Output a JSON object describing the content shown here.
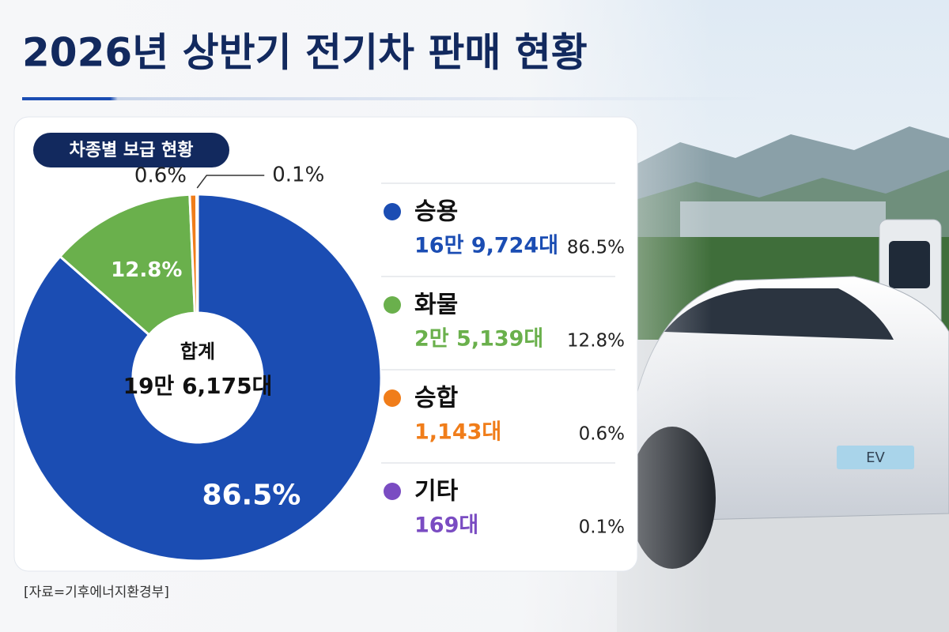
{
  "chart_data": {
    "type": "pie",
    "title": "2026년 상반기 전기차 판매 현황",
    "subtitle": "차종별 보급 현황",
    "categories": [
      "승용",
      "화물",
      "승합",
      "기타"
    ],
    "values": [
      86.5,
      12.8,
      0.6,
      0.1
    ],
    "value_labels": [
      "86.5%",
      "12.8%",
      "0.6%",
      "0.1%"
    ],
    "colors": [
      "#1b4db3",
      "#6ab04c",
      "#f07d1a",
      "#7a4cc2"
    ],
    "counts": [
      169724,
      25139,
      1143,
      169
    ],
    "count_labels": [
      "16만 9,724대",
      "2만 5,139대",
      "1,143대",
      "169대"
    ],
    "total_title": "합계",
    "total": {
      "value": 196175,
      "label": "19만 6,175대"
    },
    "source": "[자료=기후에너지환경부]"
  }
}
